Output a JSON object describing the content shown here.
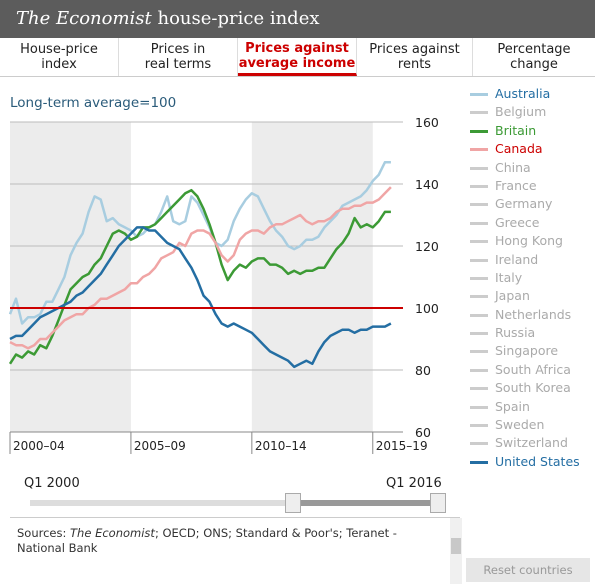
{
  "header": {
    "title_italic": "The Economist",
    "title_rest": " house-price index"
  },
  "tabs": [
    {
      "label": "House-price\nindex",
      "active": false
    },
    {
      "label": "Prices in\nreal terms",
      "active": false
    },
    {
      "label": "Prices against\naverage income",
      "active": true
    },
    {
      "label": "Prices against\nrents",
      "active": false
    },
    {
      "label": "Percentage\nchange",
      "active": false
    }
  ],
  "chart_data": {
    "type": "line",
    "subtitle": "Long-term average=100",
    "ylim": [
      60,
      160
    ],
    "yticks": [
      60,
      80,
      100,
      120,
      140,
      160
    ],
    "reference_line": 100,
    "xlim": [
      2000.0,
      2016.25
    ],
    "x_bands": [
      {
        "label": "2000–04",
        "start": 2000,
        "end": 2005,
        "shaded": true
      },
      {
        "label": "2005–09",
        "start": 2005,
        "end": 2010,
        "shaded": false
      },
      {
        "label": "2010–14",
        "start": 2010,
        "end": 2015,
        "shaded": true
      },
      {
        "label": "2015–19",
        "start": 2015,
        "end": 2020,
        "shaded": false
      }
    ],
    "series": [
      {
        "name": "Australia",
        "color": "#a8cde0",
        "values": [
          [
            2000,
            98
          ],
          [
            2000.25,
            103
          ],
          [
            2000.5,
            95
          ],
          [
            2000.75,
            97
          ],
          [
            2001,
            97
          ],
          [
            2001.25,
            98
          ],
          [
            2001.5,
            102
          ],
          [
            2001.75,
            102
          ],
          [
            2002,
            106
          ],
          [
            2002.25,
            110
          ],
          [
            2002.5,
            117
          ],
          [
            2002.75,
            121
          ],
          [
            2003,
            124
          ],
          [
            2003.25,
            131
          ],
          [
            2003.5,
            136
          ],
          [
            2003.75,
            135
          ],
          [
            2004,
            128
          ],
          [
            2004.25,
            129
          ],
          [
            2004.5,
            127
          ],
          [
            2004.75,
            126
          ],
          [
            2005,
            125
          ],
          [
            2005.25,
            123
          ],
          [
            2005.5,
            124
          ],
          [
            2005.75,
            126
          ],
          [
            2006,
            127
          ],
          [
            2006.25,
            131
          ],
          [
            2006.5,
            136
          ],
          [
            2006.75,
            128
          ],
          [
            2007,
            127
          ],
          [
            2007.25,
            128
          ],
          [
            2007.5,
            136
          ],
          [
            2007.75,
            134
          ],
          [
            2008,
            130
          ],
          [
            2008.25,
            126
          ],
          [
            2008.5,
            121
          ],
          [
            2008.75,
            120
          ],
          [
            2009,
            122
          ],
          [
            2009.25,
            128
          ],
          [
            2009.5,
            132
          ],
          [
            2009.75,
            135
          ],
          [
            2010,
            137
          ],
          [
            2010.25,
            136
          ],
          [
            2010.5,
            132
          ],
          [
            2010.75,
            128
          ],
          [
            2011,
            125
          ],
          [
            2011.25,
            123
          ],
          [
            2011.5,
            120
          ],
          [
            2011.75,
            119
          ],
          [
            2012,
            120
          ],
          [
            2012.25,
            122
          ],
          [
            2012.5,
            122
          ],
          [
            2012.75,
            123
          ],
          [
            2013,
            126
          ],
          [
            2013.25,
            128
          ],
          [
            2013.5,
            130
          ],
          [
            2013.75,
            133
          ],
          [
            2014,
            134
          ],
          [
            2014.25,
            135
          ],
          [
            2014.5,
            136
          ],
          [
            2014.75,
            138
          ],
          [
            2015,
            141
          ],
          [
            2015.25,
            143
          ],
          [
            2015.5,
            147
          ],
          [
            2015.75,
            147
          ]
        ]
      },
      {
        "name": "Belgium",
        "color": "#cccccc",
        "values": []
      },
      {
        "name": "Britain",
        "color": "#3c9a35",
        "values": [
          [
            2000,
            82
          ],
          [
            2000.25,
            85
          ],
          [
            2000.5,
            84
          ],
          [
            2000.75,
            86
          ],
          [
            2001,
            85
          ],
          [
            2001.25,
            88
          ],
          [
            2001.5,
            87
          ],
          [
            2001.75,
            91
          ],
          [
            2002,
            96
          ],
          [
            2002.25,
            101
          ],
          [
            2002.5,
            106
          ],
          [
            2002.75,
            108
          ],
          [
            2003,
            110
          ],
          [
            2003.25,
            111
          ],
          [
            2003.5,
            114
          ],
          [
            2003.75,
            116
          ],
          [
            2004,
            120
          ],
          [
            2004.25,
            124
          ],
          [
            2004.5,
            125
          ],
          [
            2004.75,
            124
          ],
          [
            2005,
            122
          ],
          [
            2005.25,
            123
          ],
          [
            2005.5,
            126
          ],
          [
            2005.75,
            126
          ],
          [
            2006,
            127
          ],
          [
            2006.25,
            129
          ],
          [
            2006.5,
            131
          ],
          [
            2006.75,
            133
          ],
          [
            2007,
            135
          ],
          [
            2007.25,
            137
          ],
          [
            2007.5,
            138
          ],
          [
            2007.75,
            136
          ],
          [
            2008,
            132
          ],
          [
            2008.25,
            127
          ],
          [
            2008.5,
            121
          ],
          [
            2008.75,
            114
          ],
          [
            2009,
            109
          ],
          [
            2009.25,
            112
          ],
          [
            2009.5,
            114
          ],
          [
            2009.75,
            113
          ],
          [
            2010,
            115
          ],
          [
            2010.25,
            116
          ],
          [
            2010.5,
            116
          ],
          [
            2010.75,
            114
          ],
          [
            2011,
            114
          ],
          [
            2011.25,
            113
          ],
          [
            2011.5,
            111
          ],
          [
            2011.75,
            112
          ],
          [
            2012,
            111
          ],
          [
            2012.25,
            112
          ],
          [
            2012.5,
            112
          ],
          [
            2012.75,
            113
          ],
          [
            2013,
            113
          ],
          [
            2013.25,
            116
          ],
          [
            2013.5,
            119
          ],
          [
            2013.75,
            121
          ],
          [
            2014,
            124
          ],
          [
            2014.25,
            129
          ],
          [
            2014.5,
            126
          ],
          [
            2014.75,
            127
          ],
          [
            2015,
            126
          ],
          [
            2015.25,
            128
          ],
          [
            2015.5,
            131
          ],
          [
            2015.75,
            131
          ]
        ]
      },
      {
        "name": "Canada",
        "color": "#f0a5a5",
        "values": [
          [
            2000,
            89
          ],
          [
            2000.25,
            88
          ],
          [
            2000.5,
            88
          ],
          [
            2000.75,
            87
          ],
          [
            2001,
            88
          ],
          [
            2001.25,
            90
          ],
          [
            2001.5,
            90
          ],
          [
            2001.75,
            92
          ],
          [
            2002,
            94
          ],
          [
            2002.25,
            96
          ],
          [
            2002.5,
            97
          ],
          [
            2002.75,
            98
          ],
          [
            2003,
            98
          ],
          [
            2003.25,
            100
          ],
          [
            2003.5,
            101
          ],
          [
            2003.75,
            103
          ],
          [
            2004,
            103
          ],
          [
            2004.25,
            104
          ],
          [
            2004.5,
            105
          ],
          [
            2004.75,
            106
          ],
          [
            2005,
            108
          ],
          [
            2005.25,
            108
          ],
          [
            2005.5,
            110
          ],
          [
            2005.75,
            111
          ],
          [
            2006,
            113
          ],
          [
            2006.25,
            116
          ],
          [
            2006.5,
            117
          ],
          [
            2006.75,
            118
          ],
          [
            2007,
            121
          ],
          [
            2007.25,
            120
          ],
          [
            2007.5,
            124
          ],
          [
            2007.75,
            125
          ],
          [
            2008,
            125
          ],
          [
            2008.25,
            124
          ],
          [
            2008.5,
            121
          ],
          [
            2008.75,
            117
          ],
          [
            2009,
            115
          ],
          [
            2009.25,
            117
          ],
          [
            2009.5,
            122
          ],
          [
            2009.75,
            124
          ],
          [
            2010,
            125
          ],
          [
            2010.25,
            125
          ],
          [
            2010.5,
            124
          ],
          [
            2010.75,
            126
          ],
          [
            2011,
            127
          ],
          [
            2011.25,
            127
          ],
          [
            2011.5,
            128
          ],
          [
            2011.75,
            129
          ],
          [
            2012,
            130
          ],
          [
            2012.25,
            128
          ],
          [
            2012.5,
            127
          ],
          [
            2012.75,
            128
          ],
          [
            2013,
            128
          ],
          [
            2013.25,
            129
          ],
          [
            2013.5,
            131
          ],
          [
            2013.75,
            132
          ],
          [
            2014,
            132
          ],
          [
            2014.25,
            133
          ],
          [
            2014.5,
            133
          ],
          [
            2014.75,
            134
          ],
          [
            2015,
            134
          ],
          [
            2015.25,
            135
          ],
          [
            2015.5,
            137
          ],
          [
            2015.75,
            139
          ]
        ]
      },
      {
        "name": "China",
        "color": "#cccccc",
        "values": []
      },
      {
        "name": "France",
        "color": "#cccccc",
        "values": []
      },
      {
        "name": "Germany",
        "color": "#cccccc",
        "values": []
      },
      {
        "name": "Greece",
        "color": "#cccccc",
        "values": []
      },
      {
        "name": "Hong Kong",
        "color": "#cccccc",
        "values": []
      },
      {
        "name": "Ireland",
        "color": "#cccccc",
        "values": []
      },
      {
        "name": "Italy",
        "color": "#cccccc",
        "values": []
      },
      {
        "name": "Japan",
        "color": "#cccccc",
        "values": []
      },
      {
        "name": "Netherlands",
        "color": "#cccccc",
        "values": []
      },
      {
        "name": "Russia",
        "color": "#cccccc",
        "values": []
      },
      {
        "name": "Singapore",
        "color": "#cccccc",
        "values": []
      },
      {
        "name": "South Africa",
        "color": "#cccccc",
        "values": []
      },
      {
        "name": "South Korea",
        "color": "#cccccc",
        "values": []
      },
      {
        "name": "Spain",
        "color": "#cccccc",
        "values": []
      },
      {
        "name": "Sweden",
        "color": "#cccccc",
        "values": []
      },
      {
        "name": "Switzerland",
        "color": "#cccccc",
        "values": []
      },
      {
        "name": "United States",
        "color": "#246ea3",
        "values": [
          [
            2000,
            90
          ],
          [
            2000.25,
            91
          ],
          [
            2000.5,
            91
          ],
          [
            2000.75,
            93
          ],
          [
            2001,
            95
          ],
          [
            2001.25,
            97
          ],
          [
            2001.5,
            98
          ],
          [
            2001.75,
            99
          ],
          [
            2002,
            100
          ],
          [
            2002.25,
            101
          ],
          [
            2002.5,
            102
          ],
          [
            2002.75,
            104
          ],
          [
            2003,
            105
          ],
          [
            2003.25,
            107
          ],
          [
            2003.5,
            109
          ],
          [
            2003.75,
            111
          ],
          [
            2004,
            114
          ],
          [
            2004.25,
            117
          ],
          [
            2004.5,
            120
          ],
          [
            2004.75,
            122
          ],
          [
            2005,
            124
          ],
          [
            2005.25,
            126
          ],
          [
            2005.5,
            126
          ],
          [
            2005.75,
            125
          ],
          [
            2006,
            125
          ],
          [
            2006.25,
            123
          ],
          [
            2006.5,
            121
          ],
          [
            2006.75,
            120
          ],
          [
            2007,
            119
          ],
          [
            2007.25,
            116
          ],
          [
            2007.5,
            113
          ],
          [
            2007.75,
            109
          ],
          [
            2008,
            104
          ],
          [
            2008.25,
            102
          ],
          [
            2008.5,
            98
          ],
          [
            2008.75,
            95
          ],
          [
            2009,
            94
          ],
          [
            2009.25,
            95
          ],
          [
            2009.5,
            94
          ],
          [
            2009.75,
            93
          ],
          [
            2010,
            92
          ],
          [
            2010.25,
            90
          ],
          [
            2010.5,
            88
          ],
          [
            2010.75,
            86
          ],
          [
            2011,
            85
          ],
          [
            2011.25,
            84
          ],
          [
            2011.5,
            83
          ],
          [
            2011.75,
            81
          ],
          [
            2012,
            82
          ],
          [
            2012.25,
            83
          ],
          [
            2012.5,
            82
          ],
          [
            2012.75,
            86
          ],
          [
            2013,
            89
          ],
          [
            2013.25,
            91
          ],
          [
            2013.5,
            92
          ],
          [
            2013.75,
            93
          ],
          [
            2014,
            93
          ],
          [
            2014.25,
            92
          ],
          [
            2014.5,
            93
          ],
          [
            2014.75,
            93
          ],
          [
            2015,
            94
          ],
          [
            2015.25,
            94
          ],
          [
            2015.5,
            94
          ],
          [
            2015.75,
            95
          ]
        ]
      }
    ]
  },
  "slider": {
    "start_label": "Q1 2000",
    "end_label": "Q1 2016",
    "range_start": 0.64,
    "range_end": 1.0
  },
  "sources": {
    "prefix": "Sources: ",
    "italic": "The Economist",
    "rest": "; OECD; ONS; Standard & Poor's; Teranet - National Bank"
  },
  "reset_label": "Reset countries"
}
